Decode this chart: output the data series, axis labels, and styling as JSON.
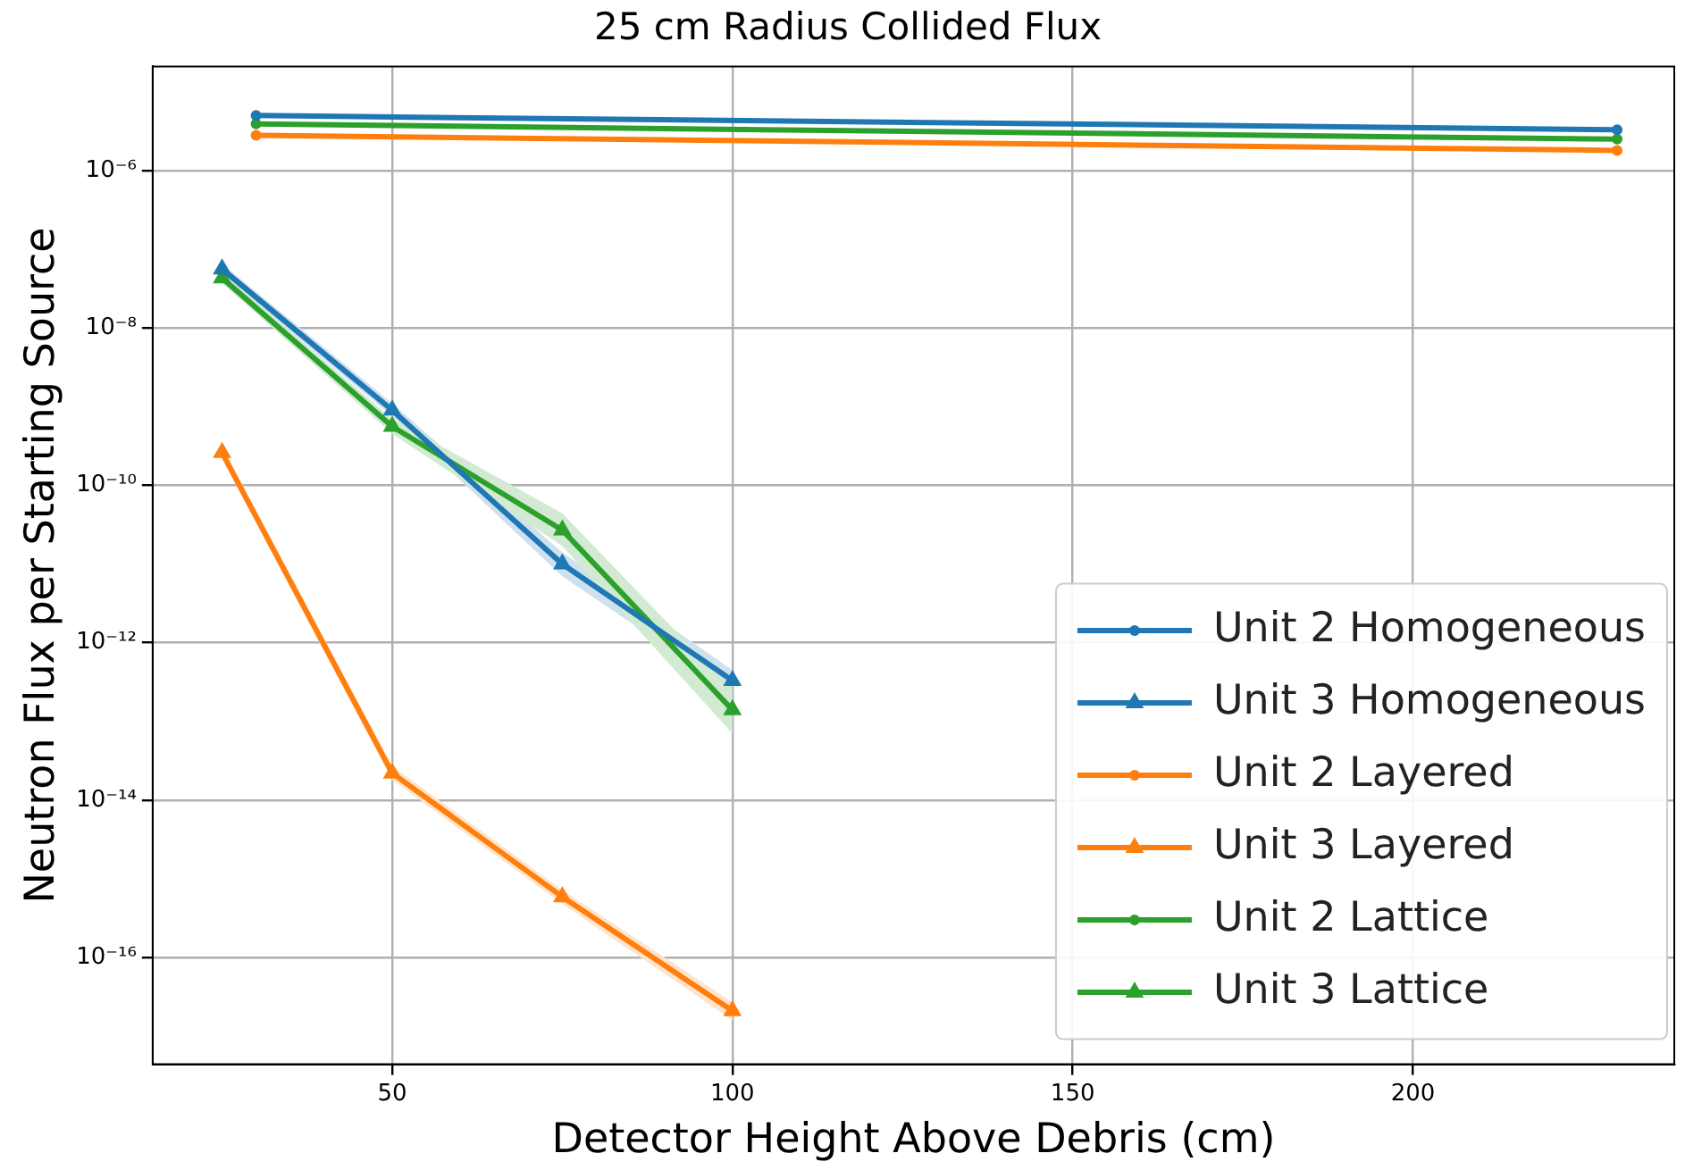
{
  "chart_data": {
    "type": "line",
    "title": "25 cm Radius Collided Flux",
    "xlabel": "Detector Height Above Debris (cm)",
    "ylabel": "Neutron Flux per Starting Source",
    "log": "y",
    "grid": true,
    "legend": "bottom right",
    "line_style": "solid",
    "xlim": [
      14.8,
      238.4
    ],
    "xticks": [
      50,
      100,
      150,
      200
    ],
    "ylim": [
      4.4e-18,
      2.1e-05
    ],
    "yticks": [
      {
        "value": 1e-16,
        "label": "10⁻¹⁶"
      },
      {
        "value": 1e-14,
        "label": "10⁻¹⁴"
      },
      {
        "value": 1e-12,
        "label": "10⁻¹²"
      },
      {
        "value": 1e-10,
        "label": "10⁻¹⁰"
      },
      {
        "value": 1e-08,
        "label": "10⁻⁸"
      },
      {
        "value": 1e-06,
        "label": "10⁻⁶"
      }
    ],
    "series": [
      {
        "name": "Unit 2 Homogeneous",
        "color": "#1f77b4",
        "marker": "circle",
        "x": [
          30,
          230
        ],
        "values": [
          5e-06,
          3.3e-06
        ]
      },
      {
        "name": "Unit 3 Homogeneous",
        "color": "#1f77b4",
        "marker": "triangle",
        "x": [
          25,
          50,
          75,
          100
        ],
        "values": [
          5.6e-08,
          9e-10,
          1e-11,
          3.3e-13
        ],
        "lower": [
          4.8e-08,
          7.5e-10,
          7e-12,
          2.4e-13
        ],
        "upper": [
          6.5e-08,
          1.1e-09,
          1.4e-11,
          4.5e-13
        ]
      },
      {
        "name": "Unit 2 Layered",
        "color": "#ff7f0e",
        "marker": "circle",
        "x": [
          30,
          230
        ],
        "values": [
          2.8e-06,
          1.8e-06
        ]
      },
      {
        "name": "Unit 3 Layered",
        "color": "#ff7f0e",
        "marker": "triangle",
        "x": [
          25,
          50,
          75,
          100
        ],
        "values": [
          2.6e-10,
          2.2e-14,
          5.9e-16,
          2.1e-17
        ],
        "lower": [
          2.2e-10,
          1.8e-14,
          4.8e-16,
          1.6e-17
        ],
        "upper": [
          3.1e-10,
          2.7e-14,
          7.2e-16,
          2.7e-17
        ]
      },
      {
        "name": "Unit 2 Lattice",
        "color": "#2ca02c",
        "marker": "circle",
        "x": [
          30,
          230
        ],
        "values": [
          3.9e-06,
          2.5e-06
        ]
      },
      {
        "name": "Unit 3 Lattice",
        "color": "#2ca02c",
        "marker": "triangle",
        "x": [
          25,
          50,
          75,
          100
        ],
        "values": [
          4.3e-08,
          5.6e-10,
          2.7e-11,
          1.4e-13
        ],
        "lower": [
          3.7e-08,
          4.5e-10,
          1.7e-11,
          7e-14
        ],
        "upper": [
          5e-08,
          7e-10,
          4.4e-11,
          2.5e-13
        ]
      }
    ]
  }
}
